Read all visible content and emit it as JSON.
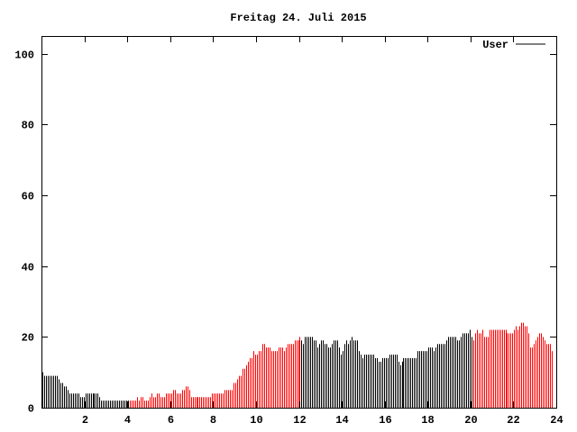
{
  "chart_data": {
    "type": "bar",
    "title": "Freitag 24. Juli 2015",
    "xlabel": "",
    "ylabel": "",
    "xlim": [
      0,
      24
    ],
    "ylim": [
      0,
      105
    ],
    "x_step_hours": 0.08333333,
    "xticks": [
      2,
      4,
      6,
      8,
      10,
      12,
      14,
      16,
      18,
      20,
      22,
      24
    ],
    "yticks": [
      0,
      20,
      40,
      60,
      80,
      100
    ],
    "grid": false,
    "legend": {
      "placement": "top-right",
      "entries": [
        {
          "label": "User",
          "color": "#000000"
        }
      ]
    },
    "colors": {
      "default": "#000000",
      "highlight": "#ff0000"
    },
    "highlight_ranges_hours": [
      [
        4,
        12
      ],
      [
        20,
        24
      ]
    ],
    "series": [
      {
        "name": "User",
        "values": [
          10,
          9,
          9,
          9,
          9,
          9,
          9,
          9,
          9,
          8,
          7,
          7,
          6,
          6,
          5,
          4,
          4,
          4,
          4,
          4,
          4,
          3,
          3,
          3,
          4,
          4,
          4,
          4,
          4,
          4,
          4,
          4,
          3,
          2,
          2,
          2,
          2,
          2,
          2,
          2,
          2,
          2,
          2,
          2,
          2,
          2,
          2,
          2,
          2,
          2,
          2,
          2,
          2,
          3,
          2,
          3,
          3,
          2,
          2,
          2,
          3,
          4,
          3,
          3,
          4,
          4,
          3,
          3,
          3,
          4,
          4,
          4,
          4,
          5,
          5,
          4,
          4,
          4,
          5,
          5,
          6,
          6,
          5,
          3,
          3,
          3,
          3,
          3,
          3,
          3,
          3,
          3,
          3,
          3,
          3,
          4,
          4,
          4,
          4,
          4,
          4,
          4,
          5,
          5,
          5,
          5,
          5,
          7,
          7,
          8,
          9,
          9,
          11,
          11,
          12,
          13,
          14,
          14,
          16,
          15,
          15,
          16,
          16,
          18,
          18,
          17,
          17,
          17,
          16,
          16,
          16,
          16,
          17,
          17,
          17,
          16,
          17,
          18,
          18,
          18,
          18,
          19,
          19,
          19,
          20,
          19,
          18,
          20,
          20,
          20,
          20,
          20,
          19,
          19,
          17,
          18,
          19,
          19,
          18,
          18,
          17,
          17,
          18,
          19,
          19,
          19,
          17,
          15,
          16,
          18,
          19,
          18,
          19,
          20,
          19,
          19,
          19,
          16,
          15,
          14,
          15,
          15,
          15,
          15,
          15,
          15,
          14,
          14,
          13,
          13,
          14,
          14,
          14,
          14,
          15,
          15,
          15,
          15,
          15,
          13,
          12,
          13,
          14,
          14,
          14,
          14,
          14,
          14,
          14,
          14,
          16,
          16,
          16,
          16,
          16,
          16,
          17,
          17,
          17,
          16,
          17,
          18,
          18,
          18,
          18,
          18,
          19,
          20,
          20,
          20,
          20,
          20,
          19,
          19,
          20,
          21,
          21,
          21,
          21,
          22,
          20,
          19,
          21,
          22,
          21,
          21,
          22,
          20,
          20,
          20,
          22,
          22,
          22,
          22,
          22,
          22,
          22,
          22,
          22,
          22,
          21,
          21,
          21,
          21,
          22,
          23,
          22,
          23,
          24,
          24,
          23,
          23,
          21,
          17,
          17,
          18,
          19,
          20,
          21,
          21,
          20,
          19,
          18,
          18,
          18,
          16
        ]
      }
    ]
  }
}
